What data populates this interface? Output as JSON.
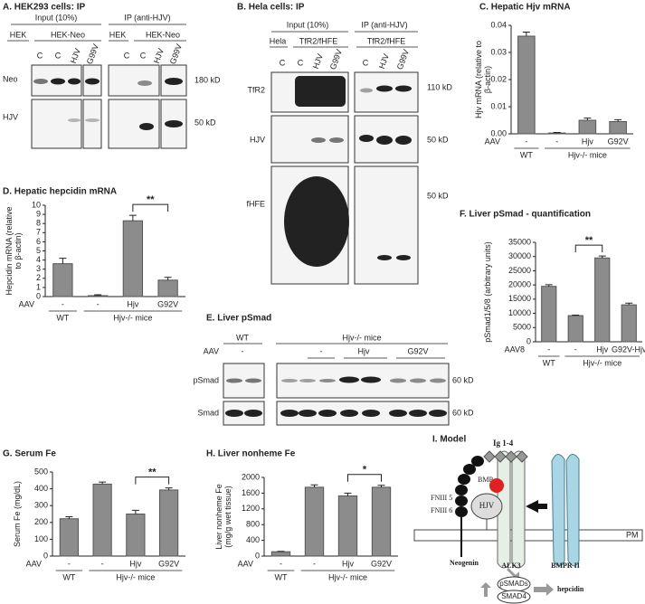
{
  "chart_data": [
    {
      "type": "bar",
      "title": "C. Hepatic Hjv mRNA",
      "ylabel": [
        "Hjv mRNA (relative to",
        "β-actin)"
      ],
      "row_label": "AAV",
      "categories": [
        "-",
        "-",
        "Hjv",
        "G92V"
      ],
      "groups": [
        "WT",
        "Hjv-/- mice"
      ],
      "values": [
        0.036,
        0.0003,
        0.005,
        0.0045
      ],
      "errors": [
        0.0015,
        0.0002,
        0.0008,
        0.0007
      ],
      "color": "#8c8c8c",
      "ylim": [
        0,
        0.04
      ],
      "yticks": [
        {
          "value": 0,
          "label": "0.00"
        },
        0.01,
        0.02,
        0.03,
        0.04
      ]
    },
    {
      "type": "bar",
      "title": "D. Hepatic hepcidin mRNA",
      "ylabel": [
        "Hepcidin mRNA (relative",
        "to β-actin)"
      ],
      "row_label": "AAV",
      "categories": [
        "-",
        "-",
        "Hjv",
        "G92V"
      ],
      "groups": [
        "WT",
        "Hjv-/- mice"
      ],
      "values": [
        3.6,
        0.1,
        8.3,
        1.8
      ],
      "errors": [
        0.6,
        0.1,
        0.6,
        0.3
      ],
      "color": "#8c8c8c",
      "significance": "**",
      "ylim": [
        0,
        10
      ],
      "yticks": [
        0,
        1,
        2,
        3,
        4,
        5,
        6,
        7,
        8,
        9,
        10
      ]
    },
    {
      "type": "bar",
      "title": "F. Liver pSmad - quantification",
      "ylabel": [
        "pSmad1/5/8 (arbitrary units)"
      ],
      "row_label": "AAV8",
      "categories": [
        "-",
        "-",
        "Hjv",
        "G92V-Hjv"
      ],
      "groups": [
        "WT",
        "Hjv-/- mice"
      ],
      "values": [
        19500,
        9200,
        29500,
        13000
      ],
      "errors": [
        600,
        200,
        700,
        600
      ],
      "color": "#8c8c8c",
      "significance": "**",
      "ylim": [
        0,
        35000
      ],
      "yticks": [
        0,
        5000,
        10000,
        15000,
        20000,
        25000,
        30000,
        35000
      ]
    },
    {
      "type": "bar",
      "title": "G. Serum Fe",
      "ylabel": [
        "Serum Fe (mg/dL)"
      ],
      "row_label": "AAV",
      "categories": [
        "-",
        "-",
        "Hjv",
        "G92V"
      ],
      "groups": [
        "WT",
        "Hjv-/- mice"
      ],
      "values": [
        222,
        428,
        250,
        393
      ],
      "errors": [
        12,
        12,
        22,
        12
      ],
      "color": "#8c8c8c",
      "significance": "**",
      "ylim": [
        0,
        500
      ],
      "yticks": [
        0,
        100,
        200,
        300,
        400,
        500
      ]
    },
    {
      "type": "bar",
      "title": "H. Liver nonheme Fe",
      "ylabel": [
        "Liver nonheme Fe",
        "(mg/g wet tissue)"
      ],
      "row_label": "AAV",
      "categories": [
        "-",
        "-",
        "Hjv",
        "G92V"
      ],
      "groups": [
        "WT",
        "Hjv-/- mice"
      ],
      "values": [
        110,
        1750,
        1530,
        1750
      ],
      "errors": [
        10,
        60,
        70,
        50
      ],
      "color": "#8c8c8c",
      "significance": "*",
      "ylim": [
        0,
        2000
      ],
      "yticks": [
        0,
        400,
        800,
        1200,
        1600,
        2000
      ]
    }
  ],
  "blots": {
    "A": {
      "title": "A. HEK293 cells:  IP",
      "groups": [
        "Input (10%)",
        "IP (anti-HJV)"
      ],
      "cell_lines": [
        "HEK",
        "HEK-Neo",
        "HEK",
        "HEK-Neo"
      ],
      "lanes": [
        "C",
        "C",
        "HJV",
        "G99V",
        "C",
        "C",
        "HJV",
        "G99V"
      ],
      "rows": [
        "Neo",
        "HJV"
      ],
      "markers": [
        "180 kD",
        "50 kD"
      ]
    },
    "B": {
      "title": "B. Hela cells: IP",
      "groups": [
        "Input (10%)",
        "IP (anti-HJV)"
      ],
      "cell_lines": [
        "Hela",
        "TfR2/fHFE",
        "TfR2/fHFE"
      ],
      "lanes": [
        "C",
        "C",
        "HJV",
        "G99V",
        "C",
        "HJV",
        "G99V"
      ],
      "rows": [
        "TfR2",
        "HJV",
        "fHFE"
      ],
      "markers": [
        "110 kD",
        "50 kD",
        "50 kD"
      ]
    },
    "E": {
      "title": "E. Liver pSmad",
      "groups": [
        "WT",
        "Hjv-/- mice"
      ],
      "row_label": "AAV",
      "treatments": [
        "-",
        "-",
        "Hjv",
        "G92V"
      ],
      "rows": [
        "pSmad",
        "Smad"
      ],
      "markers": [
        "60 kD",
        "60 kD"
      ]
    }
  },
  "model": {
    "title": "I. Model",
    "ig": "Ig 1-4",
    "bmp": "BMP",
    "hjv": "HJV",
    "fn5": "FNIII 5",
    "fn6": "FNIII 6",
    "pm": "PM",
    "neogenin": "Neogenin",
    "alk3": "ALK3",
    "bmpr": "BMPR II",
    "psmads": "pSMADs",
    "smad4": "SMAD4",
    "hepcidin": "hepcidin"
  }
}
